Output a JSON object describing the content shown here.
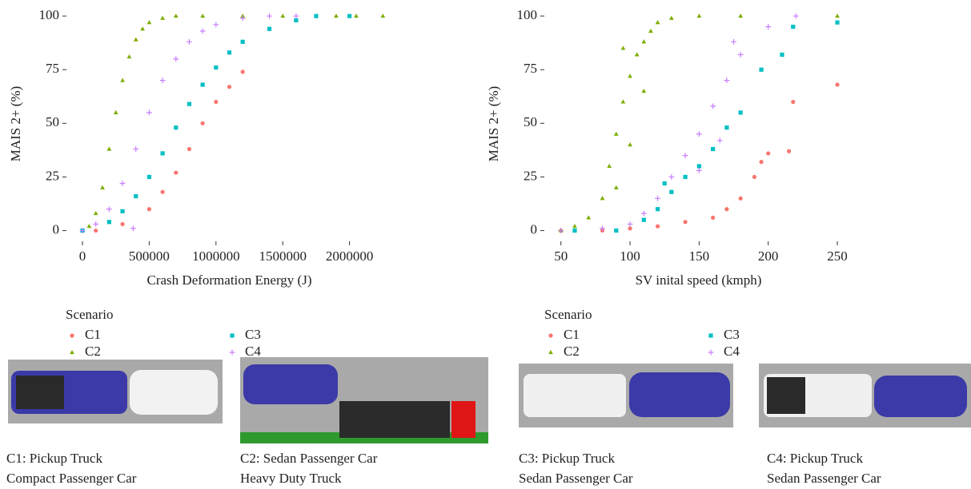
{
  "chart_data": [
    {
      "type": "scatter",
      "xlabel": "Crash Deformation Energy (J)",
      "ylabel": "MAIS 2+ (%)",
      "legend_title": "Scenario",
      "xlim": [
        -120000,
        2320000
      ],
      "ylim": [
        -5,
        104.5
      ],
      "xticks": [
        0,
        500000,
        1000000,
        1500000,
        2000000
      ],
      "yticks": [
        0,
        25,
        50,
        75,
        100
      ],
      "series": [
        {
          "name": "C1",
          "color": "#f8766d",
          "marker": "circle",
          "x": [
            100000,
            300000,
            500000,
            600000,
            700000,
            800000,
            900000,
            1000000,
            1100000,
            1200000
          ],
          "values": [
            0,
            3,
            10,
            18,
            27,
            38,
            50,
            60,
            67,
            74
          ]
        },
        {
          "name": "C2",
          "color": "#7cae00",
          "marker": "triangle",
          "x": [
            0,
            50000,
            100000,
            150000,
            200000,
            250000,
            300000,
            350000,
            400000,
            450000,
            500000,
            600000,
            700000,
            900000,
            1200000,
            1500000,
            1900000,
            2050000,
            2250000
          ],
          "values": [
            0,
            2,
            8,
            20,
            38,
            55,
            70,
            81,
            89,
            94,
            97,
            99,
            100,
            100,
            100,
            100,
            100,
            100,
            100
          ]
        },
        {
          "name": "C3",
          "color": "#00bfc4",
          "marker": "square",
          "x": [
            0,
            200000,
            300000,
            400000,
            500000,
            600000,
            700000,
            800000,
            900000,
            1000000,
            1100000,
            1200000,
            1400000,
            1600000,
            1750000,
            2000000
          ],
          "values": [
            0,
            4,
            9,
            16,
            25,
            36,
            48,
            59,
            68,
            76,
            83,
            88,
            94,
            98,
            100,
            100
          ]
        },
        {
          "name": "C4",
          "color": "#c77cff",
          "marker": "plus",
          "x": [
            0,
            100000,
            200000,
            300000,
            400000,
            500000,
            600000,
            700000,
            800000,
            900000,
            1000000,
            1200000,
            1400000,
            1600000,
            380000
          ],
          "values": [
            0,
            3,
            10,
            22,
            38,
            55,
            70,
            80,
            88,
            93,
            96,
            99,
            100,
            100,
            1
          ]
        }
      ]
    },
    {
      "type": "scatter",
      "xlabel": "SV inital speed (kmph)",
      "ylabel": "MAIS 2+ (%)",
      "legend_title": "Scenario",
      "xlim": [
        38,
        261
      ],
      "ylim": [
        -5,
        104.5
      ],
      "xticks": [
        50,
        100,
        150,
        200,
        250
      ],
      "yticks": [
        0,
        25,
        50,
        75,
        100
      ],
      "series": [
        {
          "name": "C1",
          "color": "#f8766d",
          "marker": "circle",
          "x": [
            50,
            80,
            100,
            120,
            140,
            160,
            170,
            180,
            190,
            195,
            200,
            215,
            218,
            250
          ],
          "values": [
            0,
            0,
            1,
            2,
            4,
            6,
            10,
            15,
            25,
            32,
            36,
            37,
            60,
            68
          ]
        },
        {
          "name": "C2",
          "color": "#7cae00",
          "marker": "triangle",
          "x": [
            50,
            60,
            70,
            80,
            85,
            90,
            95,
            100,
            105,
            110,
            115,
            120,
            130,
            150,
            180,
            250,
            90,
            100,
            110,
            95
          ],
          "values": [
            0,
            2,
            6,
            15,
            30,
            45,
            60,
            72,
            82,
            88,
            93,
            97,
            99,
            100,
            100,
            100,
            20,
            40,
            65,
            85
          ]
        },
        {
          "name": "C3",
          "color": "#00bfc4",
          "marker": "square",
          "x": [
            60,
            90,
            110,
            120,
            130,
            140,
            150,
            160,
            170,
            180,
            195,
            210,
            218,
            250,
            125
          ],
          "values": [
            0,
            0,
            5,
            10,
            18,
            25,
            30,
            38,
            48,
            55,
            75,
            82,
            95,
            97,
            22
          ]
        },
        {
          "name": "C4",
          "color": "#c77cff",
          "marker": "plus",
          "x": [
            50,
            80,
            100,
            110,
            120,
            130,
            140,
            150,
            160,
            170,
            180,
            200,
            220,
            175,
            150,
            165
          ],
          "values": [
            0,
            1,
            3,
            8,
            15,
            25,
            35,
            45,
            58,
            70,
            82,
            95,
            100,
            88,
            28,
            42
          ]
        }
      ]
    }
  ],
  "captions": [
    [
      "C1: Pickup Truck",
      "Compact Passenger Car"
    ],
    [
      "C2: Sedan Passenger Car",
      "Heavy Duty Truck"
    ],
    [
      "C3: Pickup Truck",
      "Sedan Passenger Car"
    ],
    [
      "C4: Pickup Truck",
      "Sedan Passenger Car"
    ]
  ]
}
